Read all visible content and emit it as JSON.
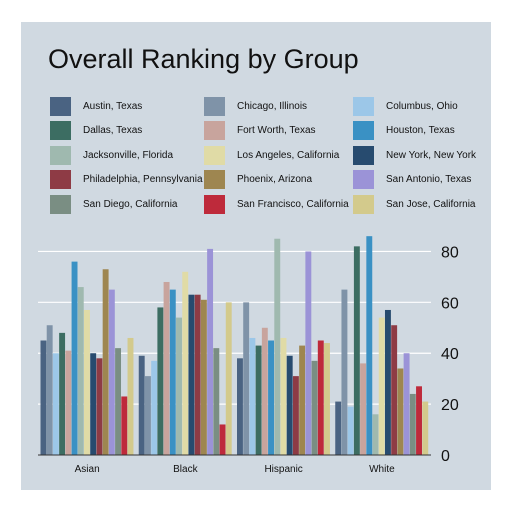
{
  "chart_data": {
    "type": "bar",
    "title": "Overall Ranking by Group",
    "xlabel": "",
    "ylabel": "",
    "categories": [
      "Asian",
      "Black",
      "Hispanic",
      "White"
    ],
    "ylim": [
      0,
      90
    ],
    "yticks": [
      0,
      20,
      40,
      60,
      80
    ],
    "y_axis_side": "right",
    "grid": "horizontal",
    "legend_position": "top",
    "series": [
      {
        "name": "Austin, Texas",
        "color": "#4a6382",
        "values": [
          45,
          39,
          38,
          21
        ]
      },
      {
        "name": "Chicago, Illinois",
        "color": "#7f93a8",
        "values": [
          51,
          31,
          60,
          65
        ]
      },
      {
        "name": "Columbus, Ohio",
        "color": "#9cc7e8",
        "values": [
          40,
          37,
          46,
          19
        ]
      },
      {
        "name": "Dallas, Texas",
        "color": "#3c6d62",
        "values": [
          48,
          58,
          43,
          82
        ]
      },
      {
        "name": "Fort Worth, Texas",
        "color": "#c8a49d",
        "values": [
          41,
          68,
          50,
          36
        ]
      },
      {
        "name": "Houston, Texas",
        "color": "#3a91c4",
        "values": [
          76,
          65,
          45,
          86
        ]
      },
      {
        "name": "Jacksonville, Florida",
        "color": "#9fb9af",
        "values": [
          66,
          54,
          85,
          16
        ]
      },
      {
        "name": "Los Angeles, California",
        "color": "#e0dba6",
        "values": [
          57,
          72,
          46,
          54
        ]
      },
      {
        "name": "New York, New York",
        "color": "#274b6f",
        "values": [
          40,
          63,
          39,
          57
        ]
      },
      {
        "name": "Philadelphia, Pennsylvania",
        "color": "#8e3b45",
        "values": [
          38,
          63,
          31,
          51
        ]
      },
      {
        "name": "Phoenix, Arizona",
        "color": "#9e8650",
        "values": [
          73,
          61,
          43,
          34
        ]
      },
      {
        "name": "San Antonio, Texas",
        "color": "#9b93d7",
        "values": [
          65,
          81,
          80,
          40
        ]
      },
      {
        "name": "San Diego, California",
        "color": "#7a8e83",
        "values": [
          42,
          42,
          37,
          24
        ]
      },
      {
        "name": "San Francisco, California",
        "color": "#be2a3b",
        "values": [
          23,
          12,
          45,
          27
        ]
      },
      {
        "name": "San Jose, California",
        "color": "#d3ca8c",
        "values": [
          46,
          60,
          44,
          21
        ]
      }
    ]
  }
}
